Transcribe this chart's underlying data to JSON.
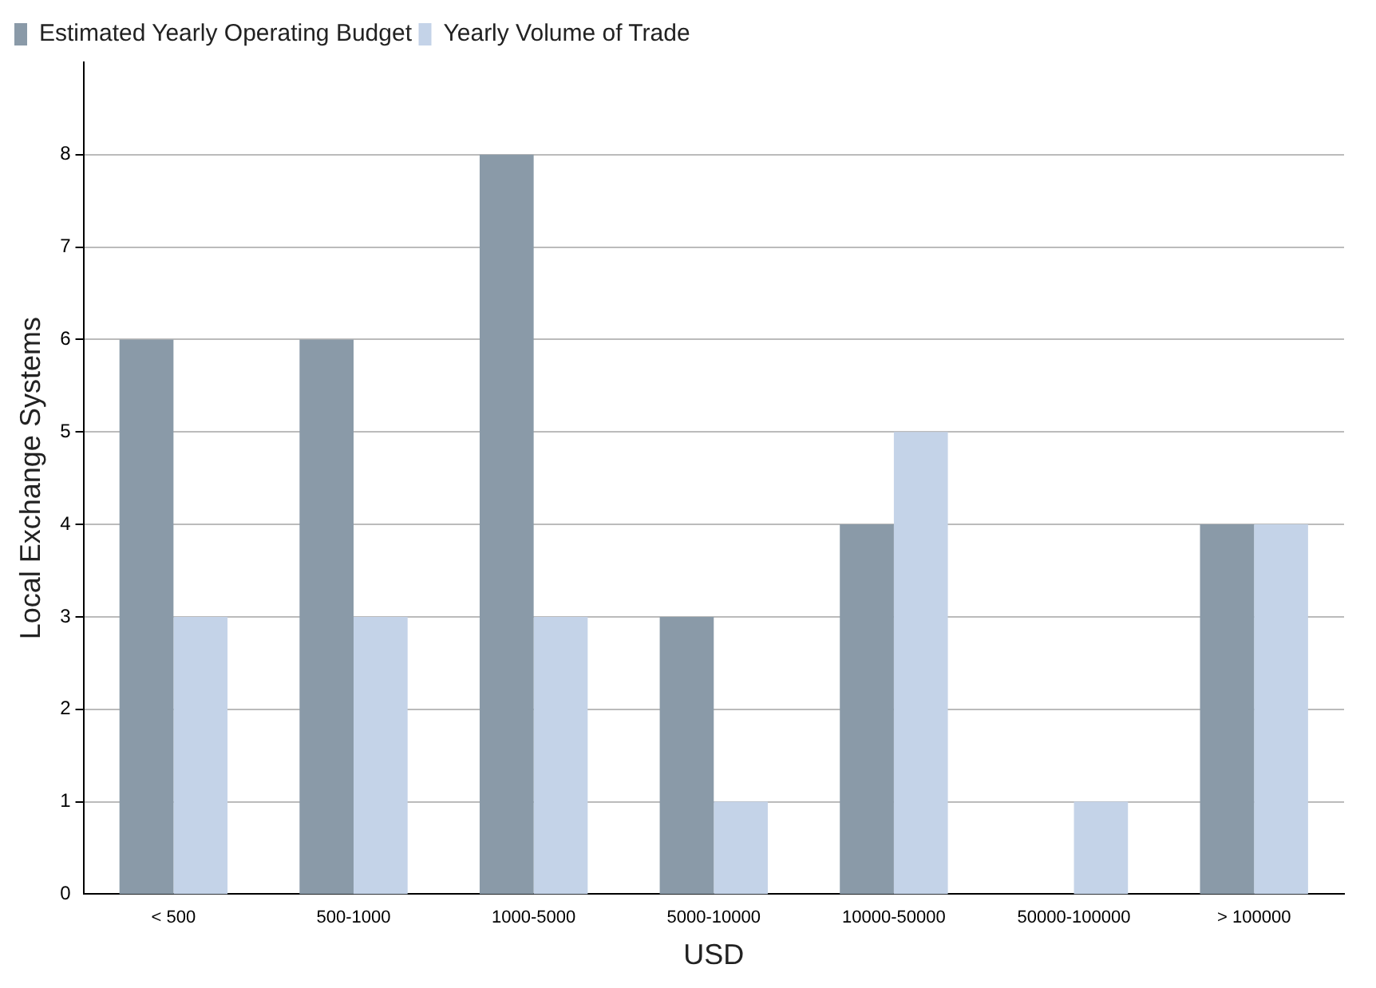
{
  "chart_data": {
    "type": "bar",
    "xlabel": "USD",
    "ylabel": "Local Exchange Systems",
    "categories": [
      "< 500",
      "500-1000",
      "1000-5000",
      "5000-10000",
      "10000-50000",
      "50000-100000",
      "> 100000"
    ],
    "series": [
      {
        "name": "Estimated Yearly Operating Budget",
        "color": "#8a9aa8",
        "values": [
          6,
          6,
          8,
          3,
          4,
          0,
          4
        ]
      },
      {
        "name": "Yearly Volume of Trade",
        "color": "#c4d3e8",
        "values": [
          3,
          3,
          3,
          1,
          5,
          1,
          4
        ]
      }
    ],
    "ylim": [
      0,
      9
    ],
    "yticks": [
      0,
      1,
      2,
      3,
      4,
      5,
      6,
      7,
      8
    ],
    "grid": "y",
    "legend": "top left"
  }
}
